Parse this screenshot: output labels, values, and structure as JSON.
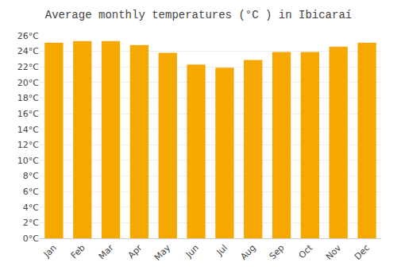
{
  "chart_data": {
    "type": "bar",
    "title": "Average monthly temperatures (°C ) in Ibicaraí",
    "categories": [
      "Jan",
      "Feb",
      "Mar",
      "Apr",
      "May",
      "Jun",
      "Jul",
      "Aug",
      "Sep",
      "Oct",
      "Nov",
      "Dec"
    ],
    "values": [
      25.1,
      25.3,
      25.3,
      24.8,
      23.8,
      22.3,
      21.9,
      22.9,
      23.9,
      23.9,
      24.6,
      25.1
    ],
    "color": "#F5A800",
    "ylim": [
      0,
      26
    ],
    "yticks": [
      {
        "value": 0,
        "label": "0°C"
      },
      {
        "value": 2,
        "label": "2°C"
      },
      {
        "value": 4,
        "label": "4°C"
      },
      {
        "value": 6,
        "label": "6°C"
      },
      {
        "value": 8,
        "label": "8°C"
      },
      {
        "value": 10,
        "label": "10°C"
      },
      {
        "value": 12,
        "label": "12°C"
      },
      {
        "value": 14,
        "label": "14°C"
      },
      {
        "value": 16,
        "label": "16°C"
      },
      {
        "value": 18,
        "label": "18°C"
      },
      {
        "value": 20,
        "label": "20°C"
      },
      {
        "value": 22,
        "label": "22°C"
      },
      {
        "value": 24,
        "label": "24°C"
      },
      {
        "value": 26,
        "label": "26°C"
      }
    ],
    "grid": true
  }
}
